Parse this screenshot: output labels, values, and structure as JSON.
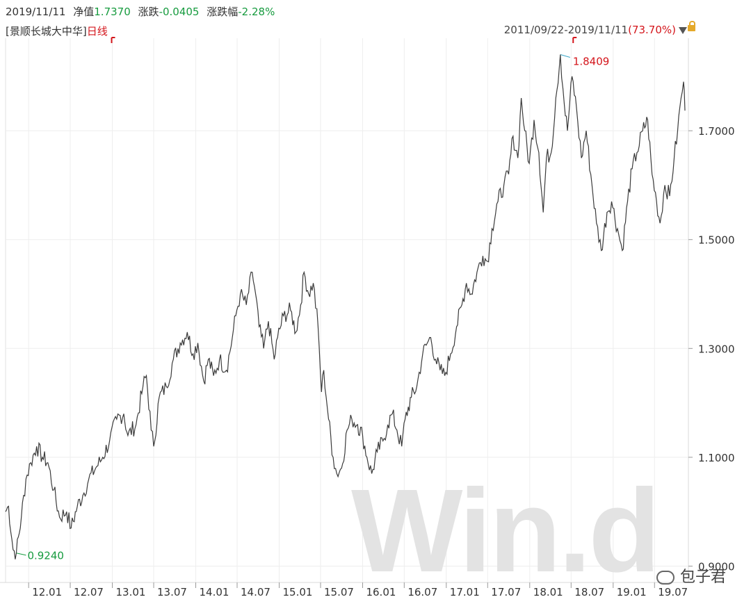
{
  "header": {
    "date": "2019/11/11",
    "nav_label": "净值",
    "nav_value": "1.7370",
    "change_label": "涨跌",
    "change_value": "-0.0405",
    "pct_label": "涨跌幅",
    "pct_value": "-2.28%"
  },
  "sub": {
    "fund_name": "[景顺长城大中华]",
    "period": "日线"
  },
  "range": {
    "dates": "2011/09/22-2019/11/11",
    "pct": "(73.70%)"
  },
  "watermark": "Win.d",
  "wechat_label": "包子君",
  "colors": {
    "line": "#3a3a3a",
    "grid": "#e9e9e9",
    "green": "#179b3f",
    "red": "#d4151b",
    "watermark": "#e3e3e3"
  },
  "chart_data": {
    "type": "line",
    "x_ticks": [
      "12.01",
      "12.07",
      "13.01",
      "13.07",
      "14.01",
      "14.07",
      "15.01",
      "15.07",
      "16.01",
      "16.07",
      "17.01",
      "17.07",
      "18.01",
      "18.07",
      "19.01",
      "19.07"
    ],
    "y_ticks": [
      "1.7000",
      "1.5000",
      "1.3000",
      "1.1000",
      "0.9000"
    ],
    "ylim": [
      0.87,
      1.87
    ],
    "min_label": "0.9240",
    "max_label": "1.8409",
    "series": [
      {
        "points": [
          [
            "2011-09-22",
            1.0
          ],
          [
            "2011-10-05",
            1.01
          ],
          [
            "2011-10-25",
            0.93
          ],
          [
            "2011-11-08",
            0.924
          ],
          [
            "2011-11-30",
            0.99
          ],
          [
            "2011-12-20",
            1.06
          ],
          [
            "2012-01-10",
            1.09
          ],
          [
            "2012-02-05",
            1.12
          ],
          [
            "2012-03-01",
            1.1
          ],
          [
            "2012-03-25",
            1.09
          ],
          [
            "2012-04-20",
            1.04
          ],
          [
            "2012-05-15",
            0.99
          ],
          [
            "2012-06-15",
            1.0
          ],
          [
            "2012-07-05",
            0.97
          ],
          [
            "2012-08-01",
            1.01
          ],
          [
            "2012-08-25",
            1.03
          ],
          [
            "2012-09-20",
            1.06
          ],
          [
            "2012-10-20",
            1.08
          ],
          [
            "2012-11-20",
            1.1
          ],
          [
            "2012-12-20",
            1.13
          ],
          [
            "2013-01-20",
            1.17
          ],
          [
            "2013-02-20",
            1.18
          ],
          [
            "2013-03-10",
            1.14
          ],
          [
            "2013-04-15",
            1.16
          ],
          [
            "2013-05-15",
            1.23
          ],
          [
            "2013-05-30",
            1.25
          ],
          [
            "2013-06-20",
            1.15
          ],
          [
            "2013-07-01",
            1.12
          ],
          [
            "2013-07-25",
            1.21
          ],
          [
            "2013-08-25",
            1.23
          ],
          [
            "2013-09-25",
            1.28
          ],
          [
            "2013-10-25",
            1.31
          ],
          [
            "2013-11-25",
            1.33
          ],
          [
            "2013-12-20",
            1.29
          ],
          [
            "2014-01-10",
            1.31
          ],
          [
            "2014-02-05",
            1.24
          ],
          [
            "2014-02-25",
            1.28
          ],
          [
            "2014-03-20",
            1.25
          ],
          [
            "2014-04-15",
            1.28
          ],
          [
            "2014-05-15",
            1.26
          ],
          [
            "2014-06-10",
            1.32
          ],
          [
            "2014-06-25",
            1.36
          ],
          [
            "2014-07-15",
            1.4
          ],
          [
            "2014-08-10",
            1.38
          ],
          [
            "2014-09-05",
            1.44
          ],
          [
            "2014-09-20",
            1.4
          ],
          [
            "2014-10-05",
            1.34
          ],
          [
            "2014-10-25",
            1.3
          ],
          [
            "2014-11-15",
            1.35
          ],
          [
            "2014-12-10",
            1.28
          ],
          [
            "2014-12-25",
            1.32
          ],
          [
            "2015-01-20",
            1.36
          ],
          [
            "2015-02-20",
            1.37
          ],
          [
            "2015-03-15",
            1.33
          ],
          [
            "2015-04-05",
            1.38
          ],
          [
            "2015-04-20",
            1.44
          ],
          [
            "2015-05-10",
            1.4
          ],
          [
            "2015-05-30",
            1.42
          ],
          [
            "2015-06-20",
            1.34
          ],
          [
            "2015-07-05",
            1.22
          ],
          [
            "2015-07-15",
            1.26
          ],
          [
            "2015-08-05",
            1.17
          ],
          [
            "2015-08-25",
            1.1
          ],
          [
            "2015-09-10",
            1.07
          ],
          [
            "2015-10-01",
            1.08
          ],
          [
            "2015-10-25",
            1.15
          ],
          [
            "2015-11-15",
            1.17
          ],
          [
            "2015-12-10",
            1.16
          ],
          [
            "2016-01-01",
            1.14
          ],
          [
            "2016-01-20",
            1.1
          ],
          [
            "2016-02-10",
            1.07
          ],
          [
            "2016-03-05",
            1.11
          ],
          [
            "2016-03-30",
            1.13
          ],
          [
            "2016-04-20",
            1.16
          ],
          [
            "2016-05-10",
            1.18
          ],
          [
            "2016-05-30",
            1.15
          ],
          [
            "2016-06-20",
            1.12
          ],
          [
            "2016-07-05",
            1.17
          ],
          [
            "2016-08-01",
            1.21
          ],
          [
            "2016-08-25",
            1.23
          ],
          [
            "2016-09-20",
            1.29
          ],
          [
            "2016-10-10",
            1.31
          ],
          [
            "2016-10-25",
            1.32
          ],
          [
            "2016-11-15",
            1.28
          ],
          [
            "2016-12-05",
            1.26
          ],
          [
            "2016-12-25",
            1.25
          ],
          [
            "2017-01-20",
            1.29
          ],
          [
            "2017-02-15",
            1.34
          ],
          [
            "2017-03-10",
            1.38
          ],
          [
            "2017-03-30",
            1.42
          ],
          [
            "2017-04-20",
            1.4
          ],
          [
            "2017-05-15",
            1.44
          ],
          [
            "2017-06-10",
            1.47
          ],
          [
            "2017-06-30",
            1.46
          ],
          [
            "2017-07-20",
            1.52
          ],
          [
            "2017-08-15",
            1.57
          ],
          [
            "2017-09-10",
            1.6
          ],
          [
            "2017-10-01",
            1.62
          ],
          [
            "2017-10-20",
            1.69
          ],
          [
            "2017-11-10",
            1.65
          ],
          [
            "2017-11-25",
            1.76
          ],
          [
            "2017-12-10",
            1.7
          ],
          [
            "2017-12-30",
            1.64
          ],
          [
            "2018-01-20",
            1.72
          ],
          [
            "2018-02-10",
            1.66
          ],
          [
            "2018-03-01",
            1.55
          ],
          [
            "2018-03-15",
            1.65
          ],
          [
            "2018-04-05",
            1.66
          ],
          [
            "2018-04-25",
            1.76
          ],
          [
            "2018-05-15",
            1.84
          ],
          [
            "2018-06-01",
            1.75
          ],
          [
            "2018-06-15",
            1.7
          ],
          [
            "2018-07-05",
            1.8
          ],
          [
            "2018-07-25",
            1.74
          ],
          [
            "2018-08-15",
            1.65
          ],
          [
            "2018-09-05",
            1.7
          ],
          [
            "2018-09-25",
            1.62
          ],
          [
            "2018-10-20",
            1.53
          ],
          [
            "2018-11-10",
            1.48
          ],
          [
            "2018-12-05",
            1.55
          ],
          [
            "2018-12-25",
            1.57
          ],
          [
            "2019-01-20",
            1.52
          ],
          [
            "2019-02-10",
            1.48
          ],
          [
            "2019-03-05",
            1.57
          ],
          [
            "2019-03-25",
            1.63
          ],
          [
            "2019-04-15",
            1.66
          ],
          [
            "2019-05-10",
            1.7
          ],
          [
            "2019-06-01",
            1.72
          ],
          [
            "2019-06-20",
            1.62
          ],
          [
            "2019-07-10",
            1.57
          ],
          [
            "2019-07-25",
            1.53
          ],
          [
            "2019-08-15",
            1.6
          ],
          [
            "2019-09-05",
            1.58
          ],
          [
            "2019-09-25",
            1.65
          ],
          [
            "2019-10-10",
            1.7
          ],
          [
            "2019-10-25",
            1.76
          ],
          [
            "2019-11-05",
            1.79
          ],
          [
            "2019-11-11",
            1.737
          ]
        ]
      }
    ]
  }
}
